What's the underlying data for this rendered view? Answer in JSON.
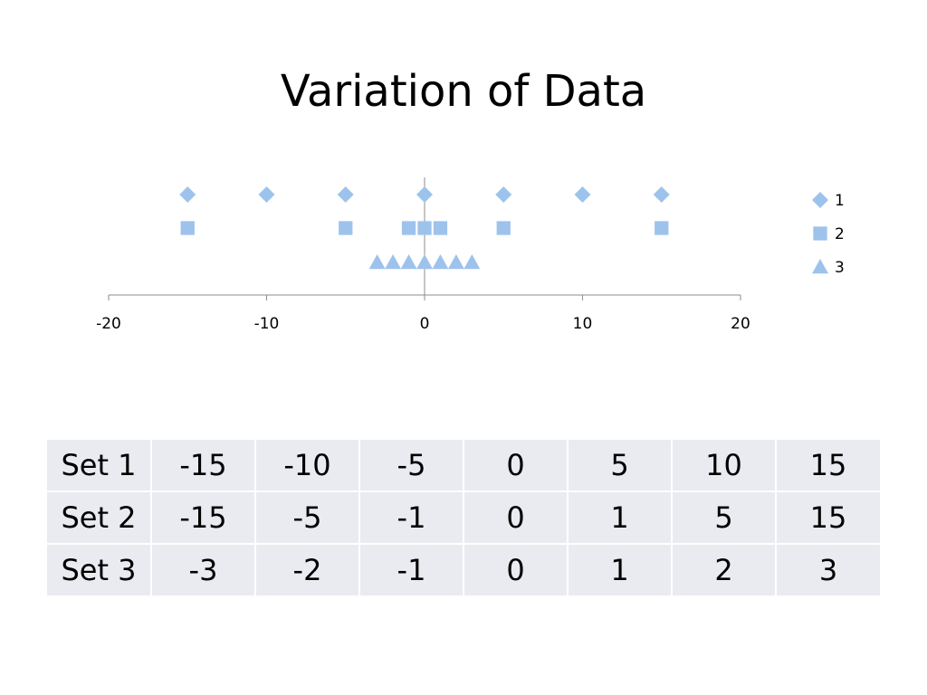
{
  "chart_data": {
    "type": "scatter",
    "title": "Variation of Data",
    "xlim": [
      -20,
      20
    ],
    "xticks": [
      -20,
      -10,
      0,
      10,
      20
    ],
    "grid": false,
    "legend_position": "right",
    "marker_color": "#9dc3ec",
    "axis_color": "#8c8c8c",
    "series": [
      {
        "name": "1",
        "marker": "diamond",
        "level": 3,
        "x": [
          -15,
          -10,
          -5,
          0,
          5,
          10,
          15
        ]
      },
      {
        "name": "2",
        "marker": "square",
        "level": 2,
        "x": [
          -15,
          -5,
          -1,
          0,
          1,
          5,
          15
        ]
      },
      {
        "name": "3",
        "marker": "triangle",
        "level": 1,
        "x": [
          -3,
          -2,
          -1,
          0,
          1,
          2,
          3
        ]
      }
    ]
  },
  "table": {
    "rows": [
      {
        "label": "Set 1",
        "cells": [
          "-15",
          "-10",
          "-5",
          "0",
          "5",
          "10",
          "15"
        ]
      },
      {
        "label": "Set 2",
        "cells": [
          "-15",
          "-5",
          "-1",
          "0",
          "1",
          "5",
          "15"
        ]
      },
      {
        "label": "Set 3",
        "cells": [
          "-3",
          "-2",
          "-1",
          "0",
          "1",
          "2",
          "3"
        ]
      }
    ]
  }
}
